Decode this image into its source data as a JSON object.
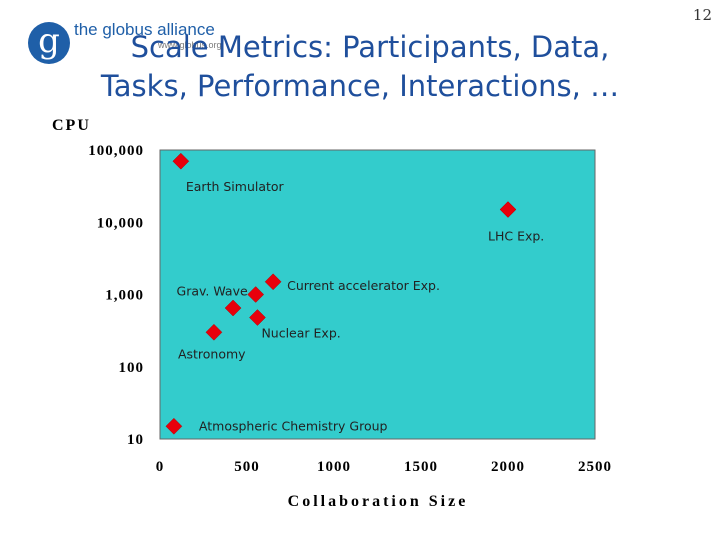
{
  "logo": {
    "name": "the globus alliance",
    "url": "www.globus.org",
    "letter": "g"
  },
  "title": {
    "line1": "Scale Metrics: Participants, Data,",
    "line2": "Tasks, Performance, Interactions, …"
  },
  "page_number": "12",
  "colors": {
    "plot_bg": "#33cccc",
    "marker": "#e8000b",
    "title": "#1f4f9c"
  },
  "chart_data": {
    "type": "scatter",
    "title": "",
    "xlabel": "Collaboration Size",
    "ylabel": "CPU",
    "xlim": [
      0,
      2500
    ],
    "ylim": [
      10,
      100000
    ],
    "yscale": "log",
    "grid": false,
    "x_ticks": [
      "0",
      "500",
      "1000",
      "1500",
      "2000",
      "2500"
    ],
    "y_ticks": [
      "10",
      "100",
      "1,000",
      "10,000",
      "100,000"
    ],
    "points": [
      {
        "x": 120,
        "y": 70000,
        "label": "Earth Simulator"
      },
      {
        "x": 2000,
        "y": 15000,
        "label": "LHC Exp."
      },
      {
        "x": 650,
        "y": 1500,
        "label": "Current accelerator Exp."
      },
      {
        "x": 550,
        "y": 1000,
        "label": "Grav. Wave"
      },
      {
        "x": 420,
        "y": 650,
        "label": ""
      },
      {
        "x": 560,
        "y": 480,
        "label": "Nuclear Exp."
      },
      {
        "x": 310,
        "y": 300,
        "label": "Astronomy"
      },
      {
        "x": 80,
        "y": 15,
        "label": "Atmospheric Chemistry Group"
      }
    ]
  }
}
